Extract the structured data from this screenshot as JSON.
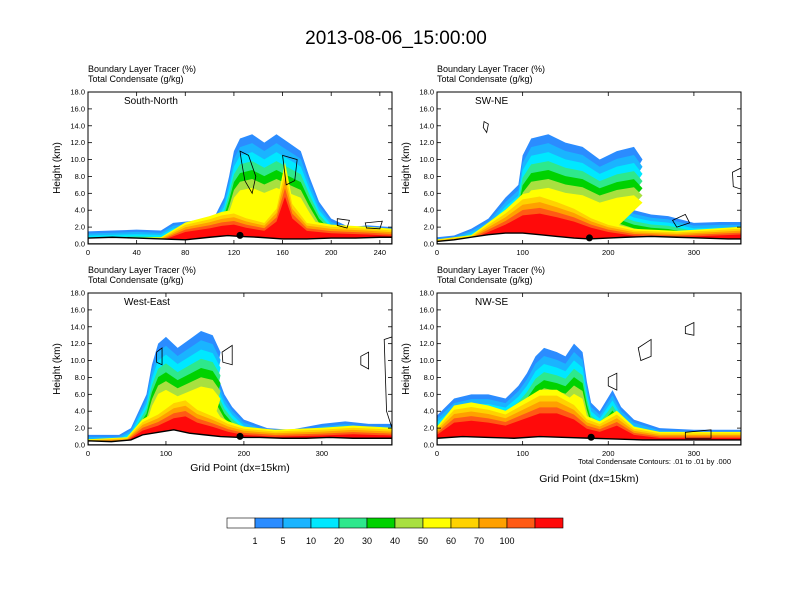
{
  "title": "2013-08-06_15:00:00",
  "legend": {
    "colors": [
      "#ffffff",
      "#2b8cff",
      "#1ab4ff",
      "#00e8ff",
      "#2ee88c",
      "#00d200",
      "#a8e040",
      "#ffff00",
      "#ffd200",
      "#ffa000",
      "#ff5a14",
      "#ff0a0a"
    ],
    "labels": [
      "1",
      "5",
      "10",
      "20",
      "30",
      "40",
      "50",
      "60",
      "70",
      "100"
    ]
  },
  "footnote": "Total Condensate Contours: .01 to .01 by .000",
  "chart_data": [
    {
      "type": "contour",
      "panel_label": "South-North",
      "title_lines": [
        "Boundary Layer Tracer   (%)",
        "Total Condensate   (g/kg)"
      ],
      "xlabel": "",
      "ylabel": "Height (km)",
      "xlim": [
        0,
        250
      ],
      "ylim": [
        0,
        18
      ],
      "xticks": [
        "0",
        "40",
        "80",
        "120",
        "160",
        "200",
        "240"
      ],
      "xtick_values": [
        0,
        40,
        80,
        120,
        160,
        200,
        240
      ],
      "yticks": [
        "0.0",
        "2.0",
        "4.0",
        "6.0",
        "8.0",
        "10.0",
        "12.0",
        "14.0",
        "16.0",
        "18.0"
      ],
      "marker_x": 125,
      "terrain": [
        [
          0,
          0.7
        ],
        [
          20,
          0.8
        ],
        [
          40,
          0.7
        ],
        [
          60,
          0.6
        ],
        [
          80,
          0.5
        ],
        [
          100,
          0.8
        ],
        [
          115,
          1.0
        ],
        [
          125,
          0.9
        ],
        [
          140,
          0.8
        ],
        [
          160,
          0.6
        ],
        [
          180,
          0.6
        ],
        [
          200,
          0.7
        ],
        [
          220,
          0.7
        ],
        [
          240,
          0.8
        ],
        [
          250,
          0.8
        ]
      ],
      "tracer_top": [
        [
          0,
          1.5
        ],
        [
          20,
          1.6
        ],
        [
          40,
          1.7
        ],
        [
          60,
          1.6
        ],
        [
          70,
          2.5
        ],
        [
          90,
          2.8
        ],
        [
          105,
          3.5
        ],
        [
          112,
          5.5
        ],
        [
          116,
          8
        ],
        [
          120,
          11
        ],
        [
          125,
          12.5
        ],
        [
          135,
          13
        ],
        [
          145,
          12
        ],
        [
          155,
          13
        ],
        [
          165,
          12
        ],
        [
          175,
          11
        ],
        [
          182,
          8
        ],
        [
          190,
          5
        ],
        [
          200,
          3
        ],
        [
          215,
          2
        ],
        [
          230,
          2.2
        ],
        [
          250,
          2
        ]
      ],
      "tracer_core": [
        [
          0,
          0.3
        ],
        [
          60,
          0.4
        ],
        [
          80,
          1.8
        ],
        [
          100,
          2.4
        ],
        [
          110,
          2.8
        ],
        [
          120,
          3.0
        ],
        [
          130,
          2.5
        ],
        [
          145,
          2.0
        ],
        [
          155,
          3.5
        ],
        [
          162,
          7.5
        ],
        [
          168,
          4
        ],
        [
          180,
          2
        ],
        [
          200,
          1.6
        ],
        [
          230,
          1.4
        ],
        [
          250,
          1.2
        ]
      ],
      "cloud_contours": [
        [
          [
            125,
            11
          ],
          [
            132,
            10.5
          ],
          [
            138,
            8
          ],
          [
            135,
            6
          ],
          [
            129,
            7.5
          ],
          [
            126,
            10
          ]
        ],
        [
          [
            160,
            10.5
          ],
          [
            172,
            10
          ],
          [
            170,
            7.5
          ],
          [
            163,
            7
          ]
        ],
        [
          [
            205,
            3
          ],
          [
            215,
            2.8
          ],
          [
            213,
            1.9
          ],
          [
            205,
            2.2
          ]
        ],
        [
          [
            228,
            2.5
          ],
          [
            242,
            2.7
          ],
          [
            240,
            1.8
          ],
          [
            229,
            1.9
          ]
        ]
      ]
    },
    {
      "type": "contour",
      "panel_label": "SW-NE",
      "title_lines": [
        "Boundary Layer Tracer   (%)",
        "Total Condensate   (g/kg)"
      ],
      "xlabel": "",
      "ylabel": "Height (km)",
      "xlim": [
        0,
        355
      ],
      "ylim": [
        0,
        18
      ],
      "xticks": [
        "0",
        "100",
        "200",
        "300"
      ],
      "xtick_values": [
        0,
        100,
        200,
        300
      ],
      "yticks": [
        "0.0",
        "2.0",
        "4.0",
        "6.0",
        "8.0",
        "10.0",
        "12.0",
        "14.0",
        "16.0",
        "18.0"
      ],
      "marker_x": 178,
      "terrain": [
        [
          0,
          0.3
        ],
        [
          20,
          0.5
        ],
        [
          40,
          0.8
        ],
        [
          60,
          1.1
        ],
        [
          80,
          1.3
        ],
        [
          100,
          1.3
        ],
        [
          120,
          1.1
        ],
        [
          140,
          0.9
        ],
        [
          160,
          0.7
        ],
        [
          178,
          0.6
        ],
        [
          200,
          0.7
        ],
        [
          220,
          0.8
        ],
        [
          250,
          0.9
        ],
        [
          280,
          0.8
        ],
        [
          310,
          0.7
        ],
        [
          340,
          0.6
        ],
        [
          355,
          0.6
        ]
      ],
      "tracer_top": [
        [
          0,
          0.8
        ],
        [
          20,
          1.0
        ],
        [
          40,
          1.8
        ],
        [
          60,
          3.0
        ],
        [
          80,
          5.5
        ],
        [
          95,
          7.0
        ],
        [
          100,
          10.5
        ],
        [
          110,
          12.5
        ],
        [
          130,
          13
        ],
        [
          150,
          12
        ],
        [
          170,
          11.5
        ],
        [
          190,
          10
        ],
        [
          210,
          11
        ],
        [
          230,
          11.5
        ],
        [
          240,
          10
        ],
        [
          225,
          7.5
        ],
        [
          210,
          5
        ],
        [
          230,
          4
        ],
        [
          250,
          3.5
        ],
        [
          270,
          3.3
        ],
        [
          300,
          2.5
        ],
        [
          330,
          2.6
        ],
        [
          355,
          2.6
        ]
      ],
      "tracer_core": [
        [
          0,
          0.2
        ],
        [
          40,
          0.6
        ],
        [
          60,
          1.8
        ],
        [
          80,
          3.0
        ],
        [
          100,
          4.5
        ],
        [
          120,
          4.8
        ],
        [
          140,
          4.2
        ],
        [
          160,
          3.5
        ],
        [
          180,
          2.5
        ],
        [
          200,
          1.8
        ],
        [
          230,
          1.2
        ],
        [
          280,
          1.0
        ],
        [
          320,
          1.2
        ],
        [
          355,
          1.4
        ]
      ],
      "cloud_contours": [
        [
          [
            55,
            14.5
          ],
          [
            60,
            14.2
          ],
          [
            58,
            13.2
          ],
          [
            54,
            13.8
          ]
        ],
        [
          [
            275,
            2.8
          ],
          [
            290,
            3.5
          ],
          [
            295,
            2.5
          ],
          [
            280,
            2.0
          ]
        ],
        [
          [
            345,
            8.5
          ],
          [
            355,
            9.0
          ],
          [
            355,
            6.5
          ],
          [
            346,
            6.8
          ]
        ]
      ]
    },
    {
      "type": "contour",
      "panel_label": "West-East",
      "title_lines": [
        "Boundary Layer Tracer   (%)",
        "Total Condensate   (g/kg)"
      ],
      "xlabel": "Grid Point (dx=15km)",
      "ylabel": "Height (km)",
      "xlim": [
        0,
        390
      ],
      "ylim": [
        0,
        18
      ],
      "xticks": [
        "0",
        "100",
        "200",
        "300"
      ],
      "xtick_values": [
        0,
        100,
        200,
        300
      ],
      "yticks": [
        "0.0",
        "2.0",
        "4.0",
        "6.0",
        "8.0",
        "10.0",
        "12.0",
        "14.0",
        "16.0",
        "18.0"
      ],
      "marker_x": 195,
      "terrain": [
        [
          0,
          0.5
        ],
        [
          30,
          0.4
        ],
        [
          55,
          0.6
        ],
        [
          70,
          1.2
        ],
        [
          90,
          1.5
        ],
        [
          110,
          1.8
        ],
        [
          130,
          1.4
        ],
        [
          150,
          1.2
        ],
        [
          170,
          1.0
        ],
        [
          195,
          0.9
        ],
        [
          220,
          0.9
        ],
        [
          250,
          0.8
        ],
        [
          280,
          0.8
        ],
        [
          310,
          0.9
        ],
        [
          340,
          0.8
        ],
        [
          370,
          0.8
        ],
        [
          390,
          0.8
        ]
      ],
      "tracer_top": [
        [
          0,
          1.2
        ],
        [
          40,
          1.2
        ],
        [
          55,
          2.0
        ],
        [
          65,
          4.0
        ],
        [
          75,
          6.0
        ],
        [
          82,
          9.5
        ],
        [
          90,
          12.0
        ],
        [
          100,
          12.8
        ],
        [
          115,
          11.5
        ],
        [
          130,
          12.5
        ],
        [
          145,
          13.5
        ],
        [
          160,
          13.0
        ],
        [
          170,
          11.0
        ],
        [
          165,
          8.5
        ],
        [
          175,
          6.0
        ],
        [
          185,
          4.5
        ],
        [
          200,
          3.0
        ],
        [
          230,
          2.0
        ],
        [
          260,
          1.8
        ],
        [
          300,
          2.5
        ],
        [
          330,
          2.8
        ],
        [
          360,
          2.5
        ],
        [
          390,
          2.5
        ]
      ],
      "tracer_core": [
        [
          0,
          0.3
        ],
        [
          50,
          0.5
        ],
        [
          70,
          2.2
        ],
        [
          90,
          3.0
        ],
        [
          110,
          4.2
        ],
        [
          125,
          4.5
        ],
        [
          140,
          3.5
        ],
        [
          160,
          2.8
        ],
        [
          180,
          2.0
        ],
        [
          200,
          1.5
        ],
        [
          240,
          1.2
        ],
        [
          300,
          1.4
        ],
        [
          340,
          1.6
        ],
        [
          390,
          1.4
        ]
      ],
      "cloud_contours": [
        [
          [
            88,
            11
          ],
          [
            95,
            11.5
          ],
          [
            95,
            9.5
          ],
          [
            88,
            9.8
          ]
        ],
        [
          [
            172,
            11
          ],
          [
            185,
            11.8
          ],
          [
            185,
            9.5
          ],
          [
            173,
            9.8
          ]
        ],
        [
          [
            350,
            10.5
          ],
          [
            360,
            11
          ],
          [
            360,
            9
          ],
          [
            350,
            9.5
          ]
        ],
        [
          [
            380,
            12.5
          ],
          [
            390,
            12.8
          ],
          [
            390,
            2
          ],
          [
            383,
            4
          ]
        ]
      ]
    },
    {
      "type": "contour",
      "panel_label": "NW-SE",
      "title_lines": [
        "Boundary Layer Tracer   (%)",
        "Total Condensate   (g/kg)"
      ],
      "xlabel": "Grid Point (dx=15km)",
      "ylabel": "Height (km)",
      "xlim": [
        0,
        355
      ],
      "ylim": [
        0,
        18
      ],
      "xticks": [
        "0",
        "100",
        "200",
        "300"
      ],
      "xtick_values": [
        0,
        100,
        200,
        300
      ],
      "yticks": [
        "0.0",
        "2.0",
        "4.0",
        "6.0",
        "8.0",
        "10.0",
        "12.0",
        "14.0",
        "16.0",
        "18.0"
      ],
      "marker_x": 180,
      "terrain": [
        [
          0,
          0.8
        ],
        [
          30,
          1.0
        ],
        [
          60,
          0.9
        ],
        [
          90,
          0.8
        ],
        [
          120,
          1.0
        ],
        [
          150,
          0.9
        ],
        [
          180,
          0.8
        ],
        [
          210,
          0.7
        ],
        [
          240,
          0.6
        ],
        [
          270,
          0.6
        ],
        [
          300,
          0.6
        ],
        [
          330,
          0.6
        ],
        [
          355,
          0.6
        ]
      ],
      "tracer_top": [
        [
          0,
          3.5
        ],
        [
          20,
          5.5
        ],
        [
          40,
          6.0
        ],
        [
          60,
          6.0
        ],
        [
          80,
          5.5
        ],
        [
          95,
          7.0
        ],
        [
          105,
          8.5
        ],
        [
          115,
          10.5
        ],
        [
          125,
          11.5
        ],
        [
          140,
          11.0
        ],
        [
          150,
          10.5
        ],
        [
          160,
          12.0
        ],
        [
          170,
          11.0
        ],
        [
          175,
          7.5
        ],
        [
          180,
          5.0
        ],
        [
          190,
          4.0
        ],
        [
          205,
          6.5
        ],
        [
          215,
          4.5
        ],
        [
          230,
          3.0
        ],
        [
          260,
          2.0
        ],
        [
          300,
          1.8
        ],
        [
          330,
          1.8
        ],
        [
          355,
          1.8
        ]
      ],
      "tracer_core": [
        [
          0,
          1.5
        ],
        [
          20,
          3.5
        ],
        [
          40,
          3.8
        ],
        [
          60,
          3.5
        ],
        [
          80,
          3.0
        ],
        [
          100,
          4.0
        ],
        [
          120,
          5.0
        ],
        [
          140,
          5.0
        ],
        [
          160,
          4.0
        ],
        [
          175,
          2.5
        ],
        [
          190,
          2.0
        ],
        [
          210,
          3.0
        ],
        [
          230,
          1.5
        ],
        [
          260,
          1.0
        ],
        [
          300,
          1.0
        ],
        [
          355,
          1.0
        ]
      ],
      "cloud_contours": [
        [
          [
            235,
            11.5
          ],
          [
            250,
            12.5
          ],
          [
            250,
            10.5
          ],
          [
            238,
            10.0
          ]
        ],
        [
          [
            290,
            14.0
          ],
          [
            300,
            14.5
          ],
          [
            300,
            13.0
          ],
          [
            290,
            13.2
          ]
        ],
        [
          [
            200,
            8.0
          ],
          [
            210,
            8.5
          ],
          [
            210,
            6.5
          ],
          [
            200,
            7.0
          ]
        ],
        [
          [
            290,
            1.5
          ],
          [
            320,
            1.8
          ],
          [
            320,
            0.8
          ],
          [
            290,
            0.8
          ]
        ]
      ]
    }
  ]
}
